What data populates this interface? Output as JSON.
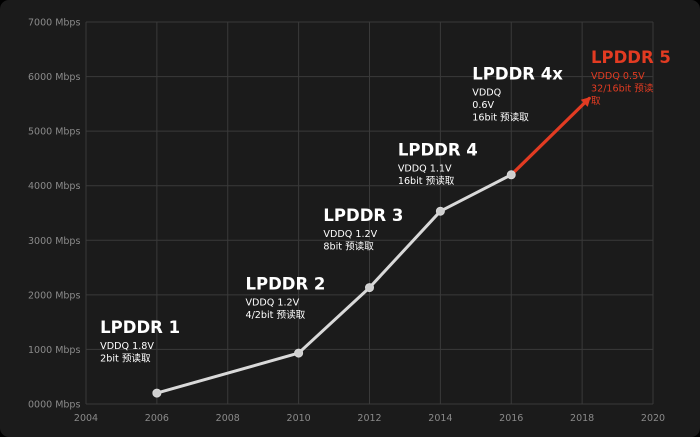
{
  "chart_data": {
    "type": "line",
    "x_ticks": [
      "2004",
      "2006",
      "2008",
      "2010",
      "2012",
      "2014",
      "2016",
      "2018",
      "2020"
    ],
    "y_ticks": [
      "0000 Mbps",
      "1000 Mbps",
      "2000 Mbps",
      "3000 Mbps",
      "4000 Mbps",
      "5000 Mbps",
      "6000 Mbps",
      "7000 Mbps"
    ],
    "xlim": [
      2004,
      2020
    ],
    "ylim": [
      0,
      7000
    ],
    "grid": true,
    "colors": {
      "line": "#d9d9d9",
      "point": "#cfcfcf",
      "highlight": "#e23b22",
      "grid": "#3a3a3a",
      "background": "#1b1b1b"
    },
    "series": [
      {
        "points": [
          {
            "x": 2006,
            "y": 200
          },
          {
            "x": 2010,
            "y": 933
          },
          {
            "x": 2012,
            "y": 2133
          },
          {
            "x": 2014,
            "y": 3533
          },
          {
            "x": 2016,
            "y": 4200
          }
        ]
      }
    ],
    "projection": {
      "from": {
        "x": 2016,
        "y": 4200
      },
      "to": {
        "x": 2018.2,
        "y": 5600
      }
    },
    "annotations": [
      {
        "id": "lpddr1",
        "title": "LPDDR 1",
        "lines": [
          "VDDQ 1.8V",
          "2bit 预读取"
        ],
        "at": {
          "x": 2004.4,
          "y": 1300
        },
        "highlight": false
      },
      {
        "id": "lpddr2",
        "title": "LPDDR 2",
        "lines": [
          "VDDQ 1.2V",
          "4/2bit 预读取"
        ],
        "at": {
          "x": 2008.5,
          "y": 2100
        },
        "highlight": false
      },
      {
        "id": "lpddr3",
        "title": "LPDDR 3",
        "lines": [
          "VDDQ 1.2V",
          "8bit 预读取"
        ],
        "at": {
          "x": 2010.7,
          "y": 3350
        },
        "highlight": false
      },
      {
        "id": "lpddr4",
        "title": "LPDDR 4",
        "lines": [
          "VDDQ 1.1V",
          "16bit 预读取"
        ],
        "at": {
          "x": 2012.8,
          "y": 4550
        },
        "highlight": false
      },
      {
        "id": "lpddr4x",
        "title": "LPDDR 4x",
        "lines": [
          "VDDQ",
          "0.6V",
          "16bit 预读取"
        ],
        "at": {
          "x": 2014.9,
          "y": 5950
        },
        "highlight": false
      },
      {
        "id": "lpddr5",
        "title": "LPDDR 5",
        "lines": [
          "VDDQ 0.5V",
          "32/16bit 预读",
          "取"
        ],
        "at": {
          "x": 2018.25,
          "y": 6250
        },
        "highlight": true
      }
    ]
  }
}
